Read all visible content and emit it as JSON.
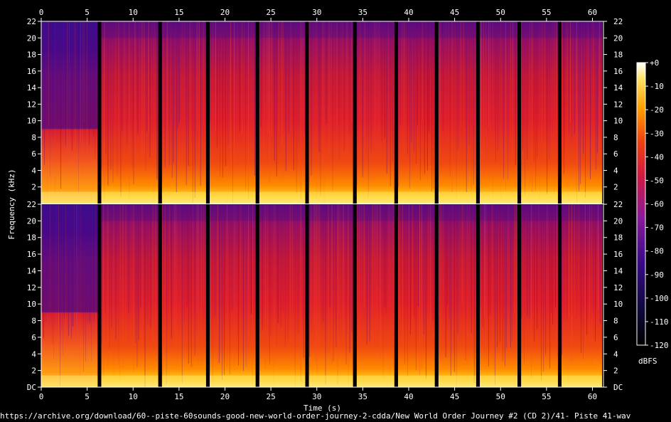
{
  "chart_data": {
    "type": "heatmap",
    "xlabel": "Time (s)",
    "ylabel": "Frequency (kHz)",
    "x_ticks": [
      "0",
      "5",
      "10",
      "15",
      "20",
      "25",
      "30",
      "35",
      "40",
      "45",
      "50",
      "55",
      "60"
    ],
    "x_range": [
      0,
      61.2
    ],
    "y_ticks": [
      "DC",
      "2",
      "4",
      "6",
      "8",
      "10",
      "12",
      "14",
      "16",
      "18",
      "20",
      "22"
    ],
    "y_range": [
      0,
      22
    ],
    "channels": 2,
    "colorbar": {
      "label": "dBFS",
      "ticks": [
        "+0",
        "-10",
        "-20",
        "-30",
        "-40",
        "-50",
        "-60",
        "-70",
        "-80",
        "-90",
        "-100",
        "-110",
        "-120"
      ],
      "range": [
        -120,
        0
      ]
    },
    "silence_gaps_s": [
      6.3,
      12.9,
      18.1,
      23.5,
      28.9,
      34.1,
      38.6,
      43.0,
      47.5,
      52.0,
      56.4
    ],
    "segments": [
      {
        "start": 0,
        "end": 6.3,
        "band_limit_khz": 9
      },
      {
        "start": 6.3,
        "end": 12.9,
        "band_limit_khz": 20
      },
      {
        "start": 12.9,
        "end": 18.1,
        "band_limit_khz": 20
      },
      {
        "start": 18.1,
        "end": 23.5,
        "band_limit_khz": 20
      },
      {
        "start": 23.5,
        "end": 28.9,
        "band_limit_khz": 20
      },
      {
        "start": 28.9,
        "end": 34.1,
        "band_limit_khz": 20
      },
      {
        "start": 34.1,
        "end": 38.6,
        "band_limit_khz": 20
      },
      {
        "start": 38.6,
        "end": 43.0,
        "band_limit_khz": 20
      },
      {
        "start": 43.0,
        "end": 47.5,
        "band_limit_khz": 20
      },
      {
        "start": 47.5,
        "end": 52.0,
        "band_limit_khz": 20
      },
      {
        "start": 52.0,
        "end": 56.4,
        "band_limit_khz": 20
      },
      {
        "start": 56.4,
        "end": 61.2,
        "band_limit_khz": 20
      }
    ]
  },
  "source_path": "https://archive.org/download/60--piste-60sounds-good-new-world-order-journey-2-cdda/New World Order Journey #2 (CD 2)/41- Piste 41-wav"
}
